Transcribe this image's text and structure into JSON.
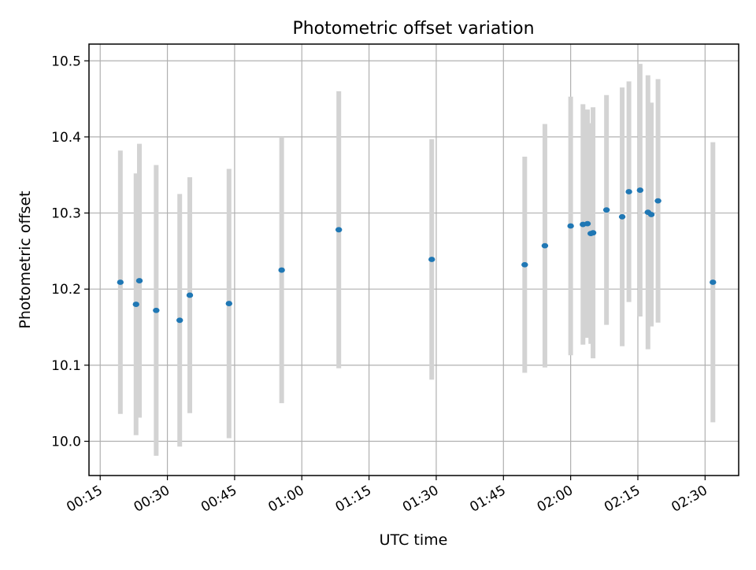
{
  "chart_data": {
    "type": "scatter",
    "title": "Photometric offset variation",
    "xlabel": "UTC time",
    "ylabel": "Photometric offset",
    "xlim": [
      "00:12:30",
      "02:37:30"
    ],
    "ylim": [
      9.955,
      10.522
    ],
    "x_ticks": [
      "00:15",
      "00:30",
      "00:45",
      "01:00",
      "01:15",
      "01:30",
      "01:45",
      "02:00",
      "02:15",
      "02:30"
    ],
    "y_ticks": [
      "10.0",
      "10.1",
      "10.2",
      "10.3",
      "10.4",
      "10.5"
    ],
    "grid": true,
    "series": [
      {
        "marker_color": "#1f77b4",
        "errorbar_color": "#d3d3d3",
        "points": [
          {
            "x": "00:19:30",
            "y": 10.209,
            "err": 0.173
          },
          {
            "x": "00:23:00",
            "y": 10.18,
            "err": 0.172
          },
          {
            "x": "00:23:45",
            "y": 10.211,
            "err": 0.18
          },
          {
            "x": "00:27:30",
            "y": 10.172,
            "err": 0.191
          },
          {
            "x": "00:32:45",
            "y": 10.159,
            "err": 0.166
          },
          {
            "x": "00:35:00",
            "y": 10.192,
            "err": 0.155
          },
          {
            "x": "00:43:45",
            "y": 10.181,
            "err": 0.177
          },
          {
            "x": "00:55:30",
            "y": 10.225,
            "err": 0.175
          },
          {
            "x": "01:08:15",
            "y": 10.278,
            "err": 0.182
          },
          {
            "x": "01:29:00",
            "y": 10.239,
            "err": 0.158
          },
          {
            "x": "01:49:45",
            "y": 10.232,
            "err": 0.142
          },
          {
            "x": "01:54:15",
            "y": 10.257,
            "err": 0.16
          },
          {
            "x": "02:00:00",
            "y": 10.283,
            "err": 0.17
          },
          {
            "x": "02:02:45",
            "y": 10.285,
            "err": 0.158
          },
          {
            "x": "02:03:45",
            "y": 10.286,
            "err": 0.15
          },
          {
            "x": "02:04:30",
            "y": 10.273,
            "err": 0.145
          },
          {
            "x": "02:05:00",
            "y": 10.274,
            "err": 0.165
          },
          {
            "x": "02:08:00",
            "y": 10.304,
            "err": 0.151
          },
          {
            "x": "02:11:30",
            "y": 10.295,
            "err": 0.17
          },
          {
            "x": "02:13:00",
            "y": 10.328,
            "err": 0.145
          },
          {
            "x": "02:15:30",
            "y": 10.33,
            "err": 0.166
          },
          {
            "x": "02:17:15",
            "y": 10.301,
            "err": 0.18
          },
          {
            "x": "02:18:00",
            "y": 10.298,
            "err": 0.147
          },
          {
            "x": "02:19:30",
            "y": 10.316,
            "err": 0.16
          },
          {
            "x": "02:31:45",
            "y": 10.209,
            "err": 0.184
          }
        ]
      }
    ]
  }
}
